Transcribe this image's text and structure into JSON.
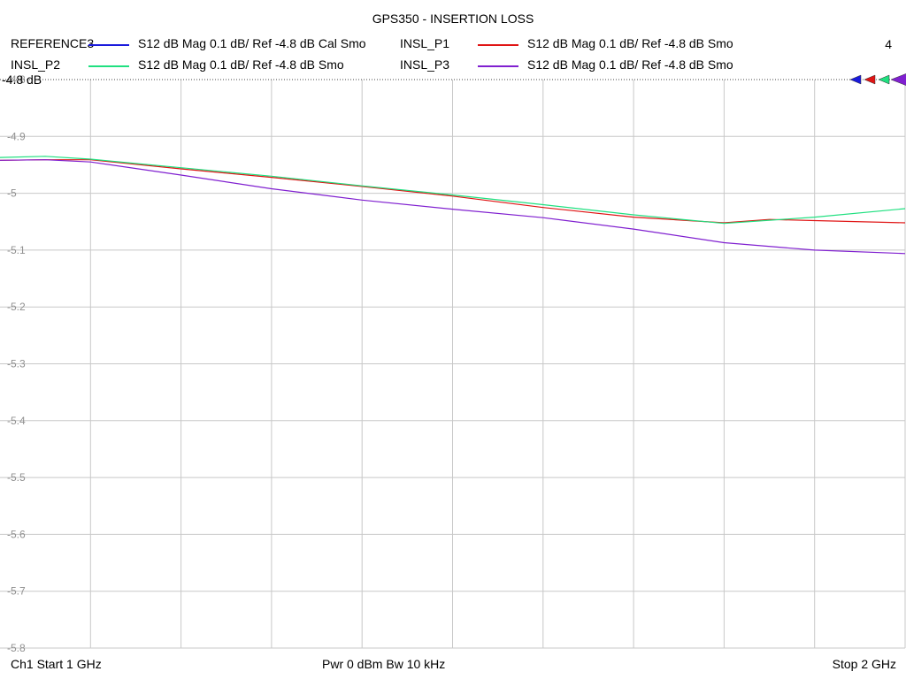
{
  "chart_data": {
    "type": "line",
    "title": "GPS350 - INSERTION LOSS",
    "x_start_ghz": 1,
    "x_stop_ghz": 2,
    "ylim": [
      -5.8,
      -4.8
    ],
    "ref_value": -4.8,
    "ref_label": "-4.8 dB",
    "grid": true,
    "yticks": [
      -4.8,
      -4.9,
      -5.0,
      -5.1,
      -5.2,
      -5.3,
      -5.4,
      -5.5,
      -5.6,
      -5.7,
      -5.8
    ],
    "ytick_labels": [
      "-4.8",
      "-4.9",
      "-5",
      "-5.1",
      "-5.2",
      "-5.3",
      "-5.4",
      "-5.5",
      "-5.6",
      "-5.7",
      "-5.8"
    ],
    "trace_count": "4",
    "series": [
      {
        "name": "REFERENCE3",
        "desc": "S12  dB Mag  0.1 dB/ Ref -4.8 dB  Cal Smo",
        "color": "#1a1adc",
        "x": [],
        "y": []
      },
      {
        "name": "INSL_P1",
        "desc": "S12  dB Mag  0.1 dB/ Ref -4.8 dB  Smo",
        "color": "#e01414",
        "x": [
          1.0,
          1.05,
          1.1,
          1.2,
          1.3,
          1.4,
          1.5,
          1.6,
          1.7,
          1.8,
          1.85,
          1.9,
          2.0
        ],
        "y": [
          -4.942,
          -4.941,
          -4.941,
          -4.957,
          -4.972,
          -4.988,
          -5.005,
          -5.025,
          -5.042,
          -5.052,
          -5.046,
          -5.048,
          -5.052
        ]
      },
      {
        "name": "INSL_P2",
        "desc": "S12  dB Mag  0.1 dB/ Ref -4.8 dB  Smo",
        "color": "#20e080",
        "x": [
          1.0,
          1.05,
          1.1,
          1.2,
          1.3,
          1.4,
          1.5,
          1.6,
          1.7,
          1.8,
          1.9,
          2.0
        ],
        "y": [
          -4.937,
          -4.935,
          -4.94,
          -4.955,
          -4.97,
          -4.987,
          -5.003,
          -5.02,
          -5.038,
          -5.053,
          -5.042,
          -5.027
        ]
      },
      {
        "name": "INSL_P3",
        "desc": "S12  dB Mag  0.1 dB/ Ref -4.8 dB  Smo",
        "color": "#8020d0",
        "x": [
          1.0,
          1.05,
          1.1,
          1.2,
          1.3,
          1.4,
          1.5,
          1.6,
          1.7,
          1.8,
          1.9,
          2.0
        ],
        "y": [
          -4.942,
          -4.941,
          -4.945,
          -4.968,
          -4.992,
          -5.012,
          -5.028,
          -5.043,
          -5.063,
          -5.087,
          -5.1,
          -5.106
        ]
      }
    ]
  },
  "footer": {
    "left": "Ch1  Start  1 GHz",
    "center": "Pwr  0 dBm  Bw  10 kHz",
    "right": "Stop  2 GHz"
  }
}
